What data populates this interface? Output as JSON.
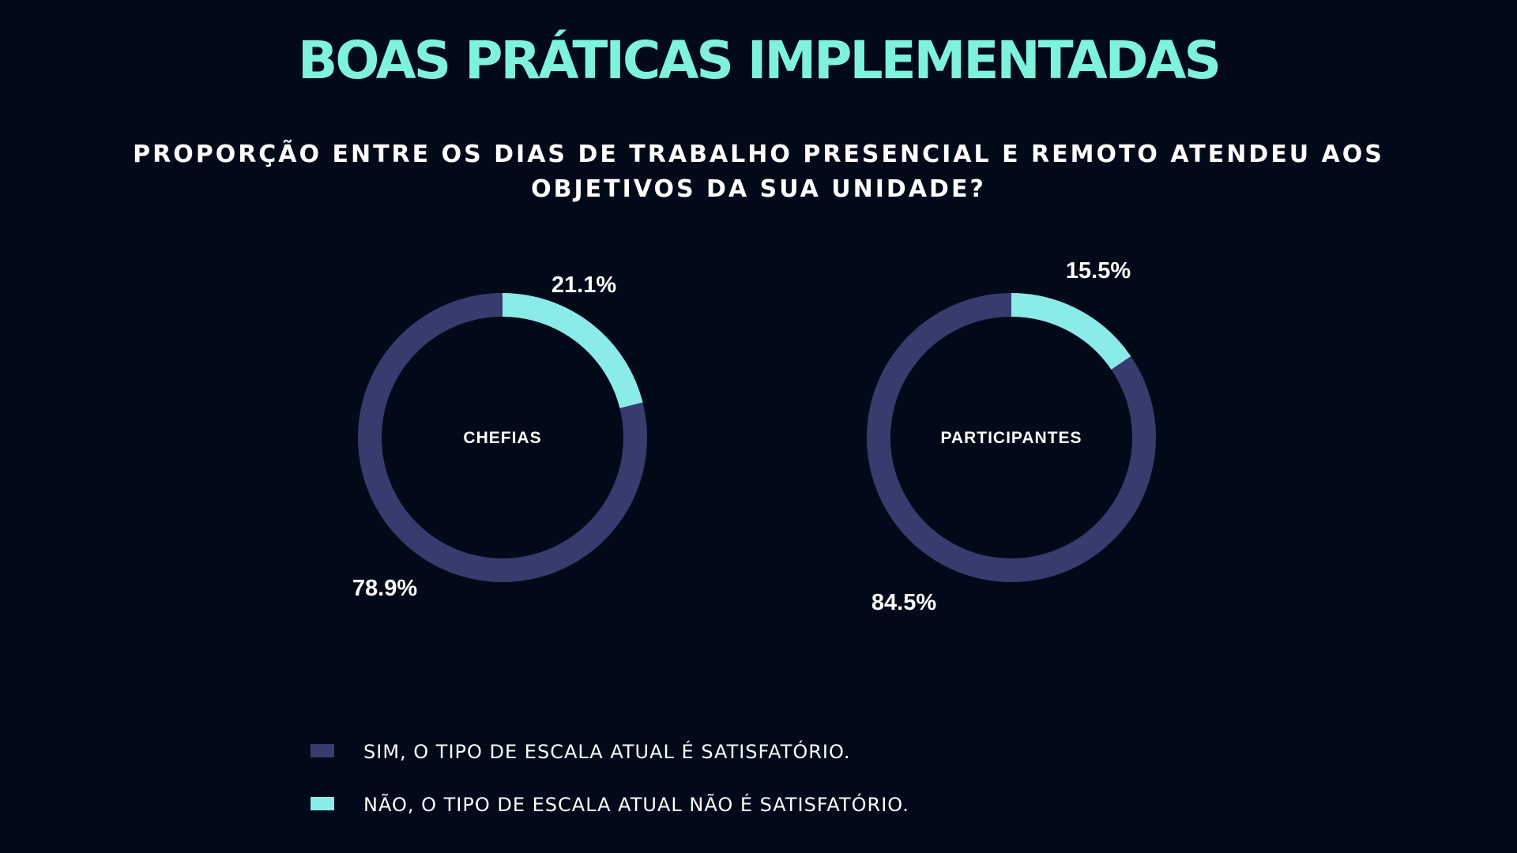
{
  "header": {
    "title": "BOAS PRÁTICAS IMPLEMENTADAS",
    "subtitle": "PROPORÇÃO ENTRE OS DIAS DE TRABALHO PRESENCIAL E REMOTO ATENDEU AOS OBJETIVOS DA SUA UNIDADE?"
  },
  "colors": {
    "background": "#020a19",
    "title": "#7ff2dc",
    "sim": "#363c6e",
    "nao": "#8aebe8"
  },
  "legend": {
    "items": [
      {
        "label": "SIM, O TIPO DE ESCALA ATUAL É SATISFATÓRIO.",
        "color": "#363c6e"
      },
      {
        "label": "NÃO, O TIPO DE ESCALA ATUAL NÃO É SATISFATÓRIO.",
        "color": "#8aebe8"
      }
    ]
  },
  "chart_data": [
    {
      "type": "pie",
      "variant": "donut",
      "center_label": "CHEFIAS",
      "slices": [
        {
          "legend": "SIM, O TIPO DE ESCALA ATUAL É SATISFATÓRIO.",
          "value": 78.9,
          "label": "78.9%",
          "color": "#363c6e"
        },
        {
          "legend": "NÃO, O TIPO DE ESCALA ATUAL NÃO É SATISFATÓRIO.",
          "value": 21.1,
          "label": "21.1%",
          "color": "#8aebe8"
        }
      ],
      "legend_placement": "bottom-left"
    },
    {
      "type": "pie",
      "variant": "donut",
      "center_label": "PARTICIPANTES",
      "slices": [
        {
          "legend": "SIM, O TIPO DE ESCALA ATUAL É SATISFATÓRIO.",
          "value": 84.5,
          "label": "84.5%",
          "color": "#363c6e"
        },
        {
          "legend": "NÃO, O TIPO DE ESCALA ATUAL NÃO É SATISFATÓRIO.",
          "value": 15.5,
          "label": "15.5%",
          "color": "#8aebe8"
        }
      ],
      "legend_placement": "bottom-left"
    }
  ]
}
